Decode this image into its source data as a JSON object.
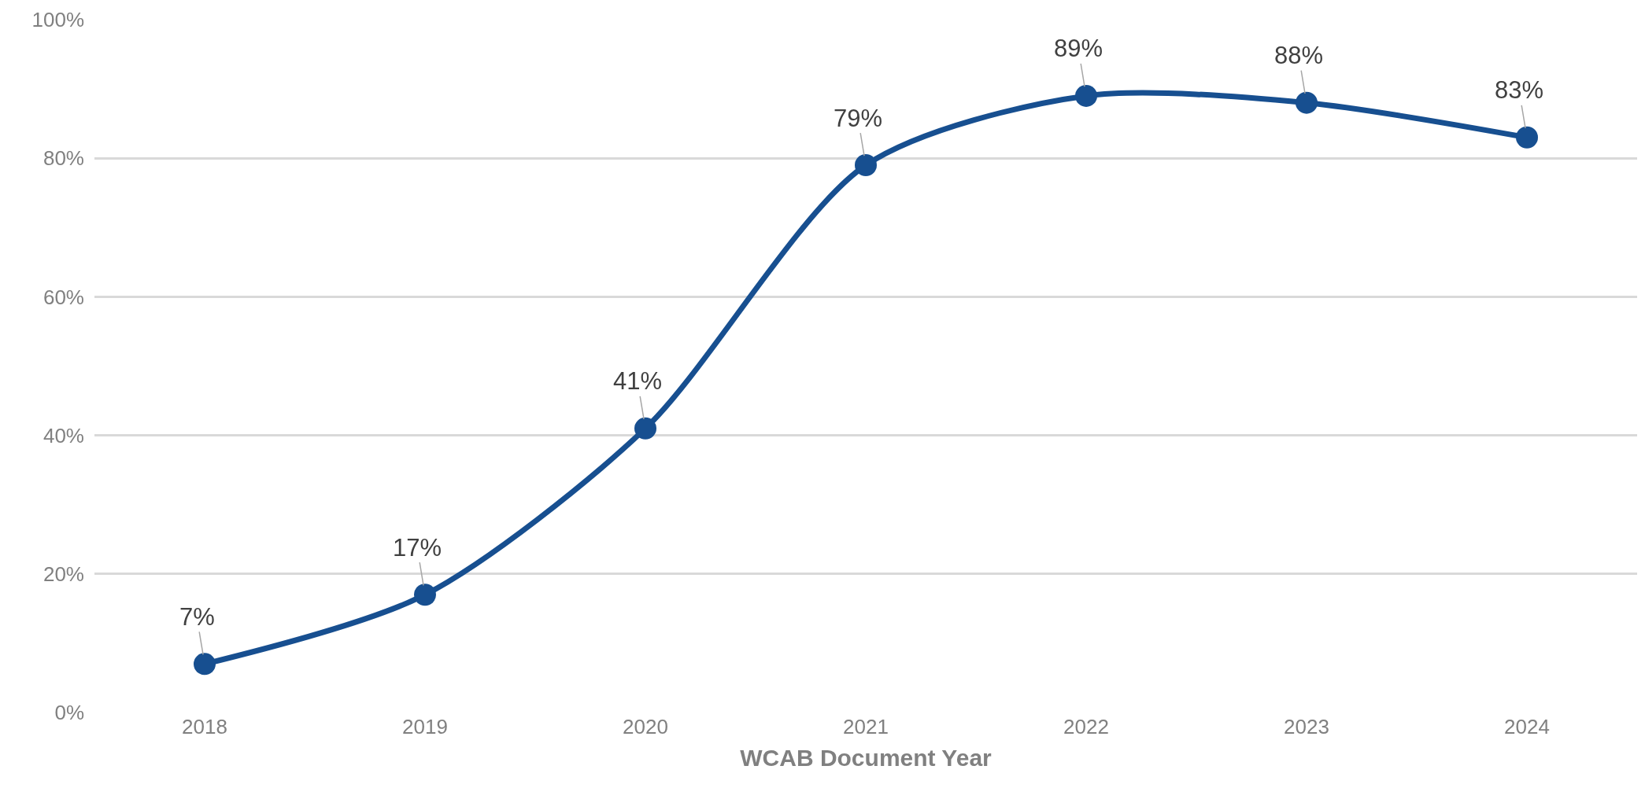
{
  "chart_data": {
    "type": "line",
    "xlabel": "WCAB Document Year",
    "categories": [
      "2018",
      "2019",
      "2020",
      "2021",
      "2022",
      "2023",
      "2024"
    ],
    "series": [
      {
        "color": "#174f90",
        "values": [
          7,
          17,
          41,
          79,
          89,
          88,
          83
        ],
        "value_labels": [
          "7%",
          "17%",
          "41%",
          "79%",
          "89%",
          "88%",
          "83%"
        ]
      }
    ],
    "ylim": [
      0,
      100
    ],
    "yticks": [
      {
        "value": 0,
        "label": "0%"
      },
      {
        "value": 20,
        "label": "20%"
      },
      {
        "value": 40,
        "label": "40%"
      },
      {
        "value": 60,
        "label": "60%"
      },
      {
        "value": 80,
        "label": "80%"
      },
      {
        "value": 100,
        "label": "100%"
      }
    ],
    "grid": "y",
    "marker": "circle",
    "line_style": "solid",
    "legend": false
  }
}
